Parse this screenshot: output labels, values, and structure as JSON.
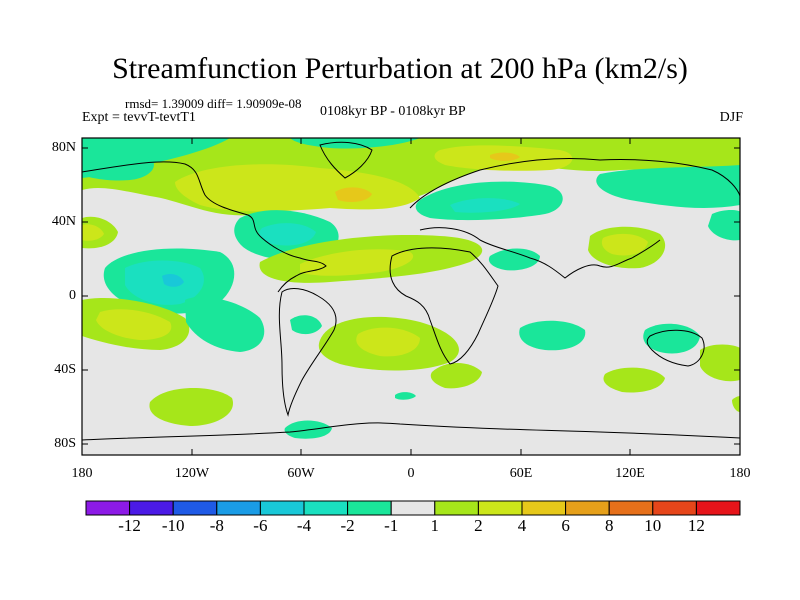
{
  "title": "Streamfunction Perturbation at 200 hPa (km2/s)",
  "stats": "rmsd= 1.39009 diff= 1.90909e-08",
  "experiment": "Expt = tevvT-tevtT1",
  "period": "0108kyr BP - 0108kyr BP",
  "season": "DJF",
  "lat_labels": [
    "80N",
    "40N",
    "0",
    "40S",
    "80S"
  ],
  "lon_labels": [
    "180",
    "120W",
    "60W",
    "0",
    "60E",
    "120E",
    "180"
  ],
  "colorbar": {
    "labels": [
      "-12",
      "-10",
      "-8",
      "-6",
      "-4",
      "-2",
      "-1",
      "1",
      "2",
      "4",
      "6",
      "8",
      "10",
      "12"
    ],
    "colors": [
      "#8c1ae6",
      "#4b1ae6",
      "#1f5ae6",
      "#1a9ce6",
      "#19c8d8",
      "#1ae0c0",
      "#1ae69a",
      "#e6e6e6",
      "#a6e61a",
      "#cce61a",
      "#e6c81a",
      "#e6a01a",
      "#e6701a",
      "#e6461a",
      "#e6141a"
    ]
  },
  "palette": {
    "neutral": "#e6e6e6",
    "neg1": "#1ae69a",
    "neg2": "#1ae0c0",
    "neg3": "#19c8d8",
    "pos1": "#a6e61a",
    "pos2": "#cce61a",
    "pos3": "#e6c81a"
  }
}
